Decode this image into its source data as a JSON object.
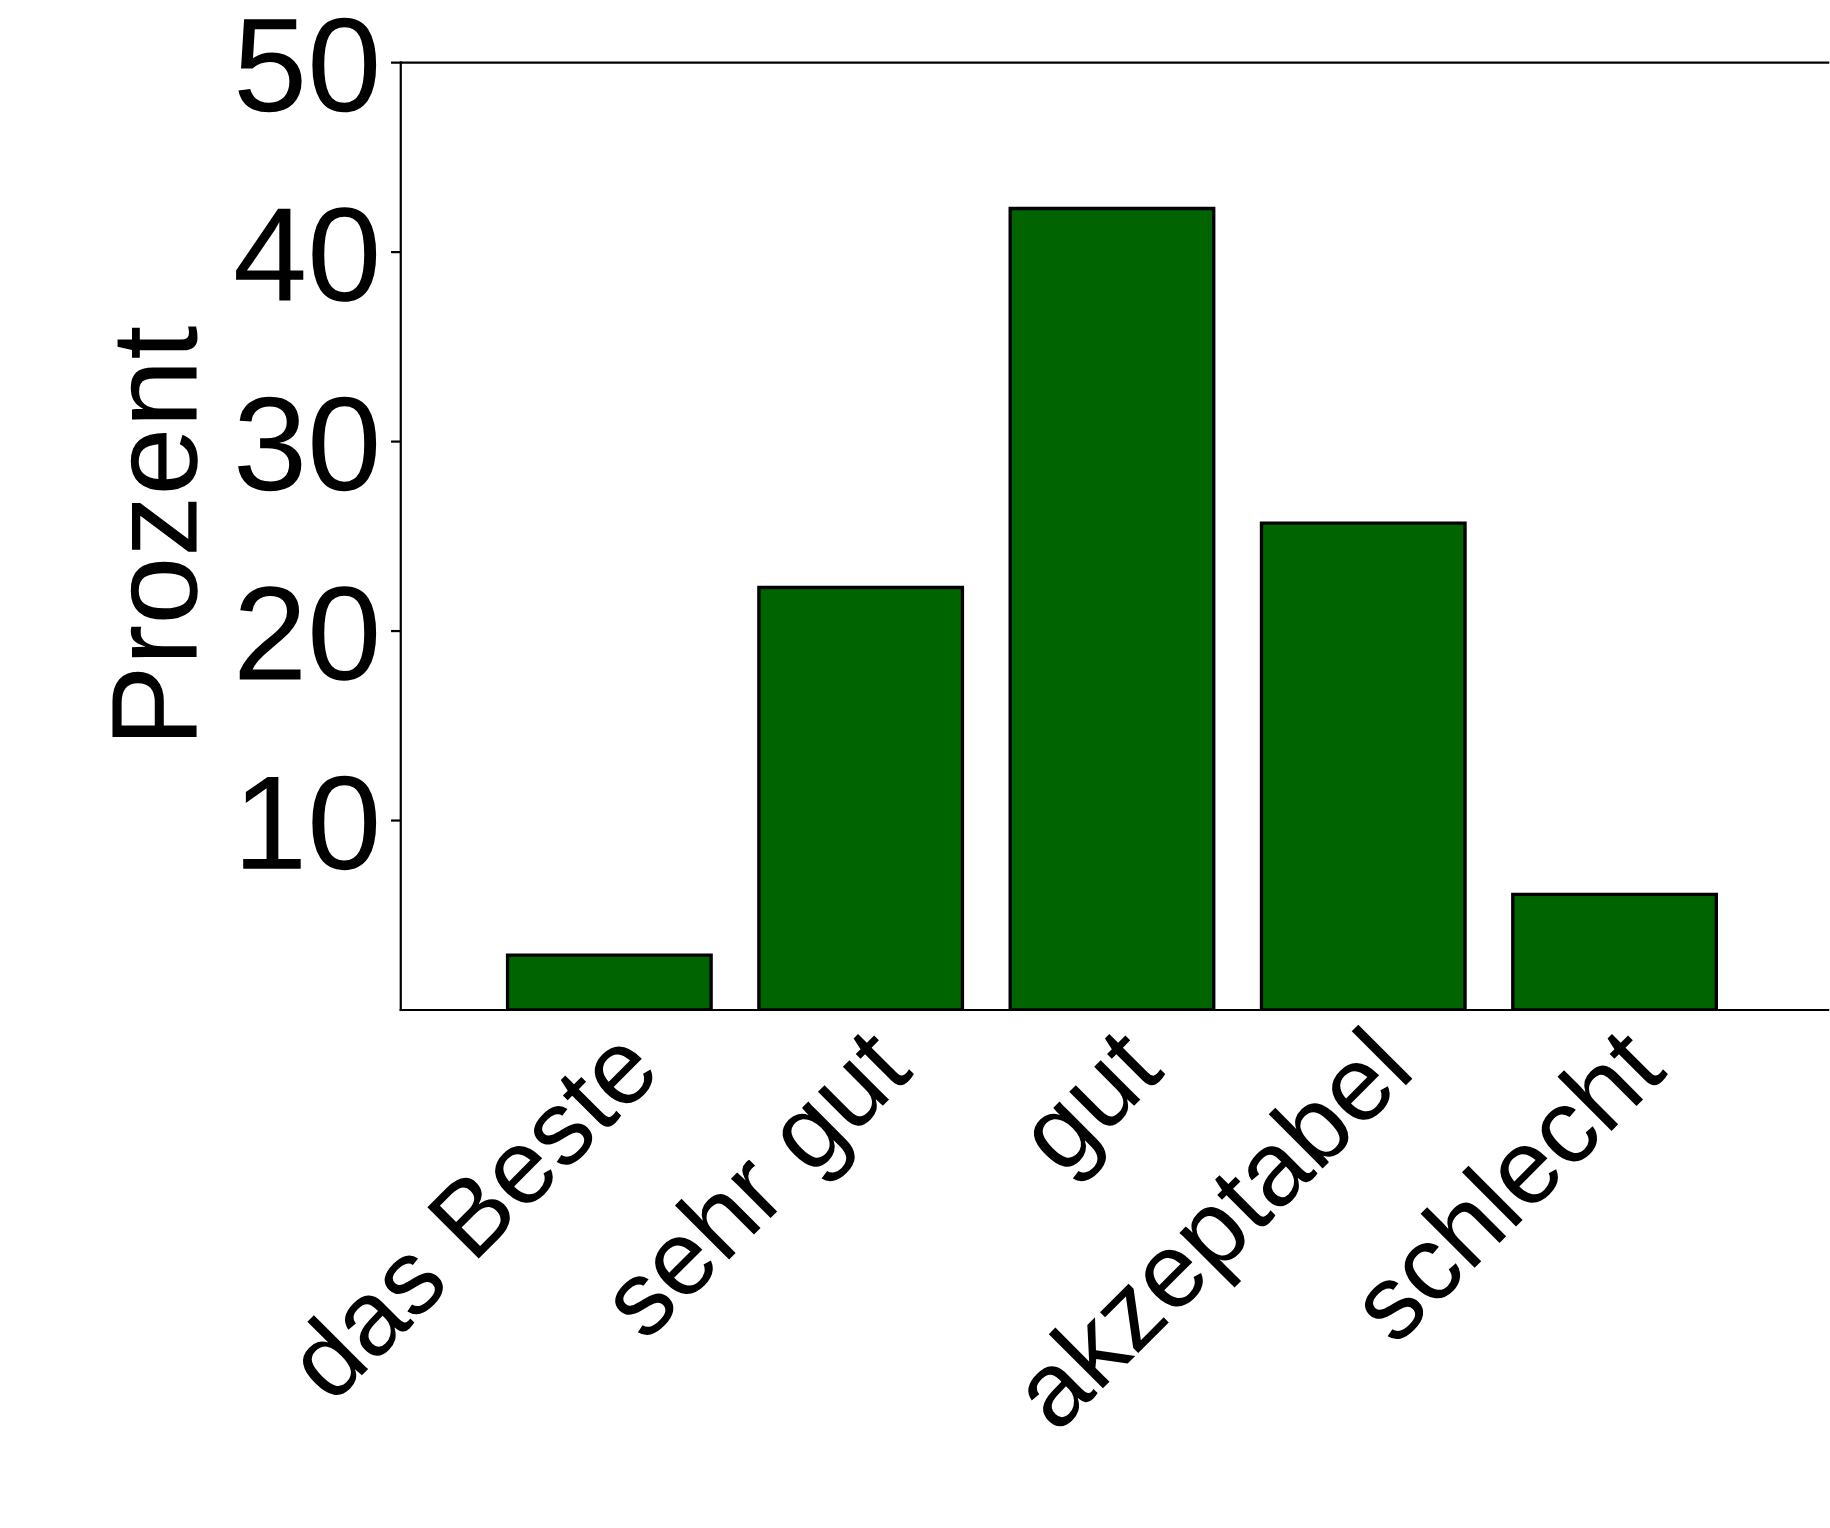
{
  "chart_data": {
    "type": "bar",
    "ylabel": "Prozent",
    "categories": [
      "das Beste",
      "sehr gut",
      "gut",
      "akzeptabel",
      "schlecht"
    ],
    "values": [
      2.9,
      22.3,
      42.3,
      25.7,
      6.1
    ],
    "color": "#006400",
    "ylim": [
      0,
      50
    ],
    "yticks": [
      10,
      20,
      30,
      40,
      50
    ],
    "grid": false
  }
}
